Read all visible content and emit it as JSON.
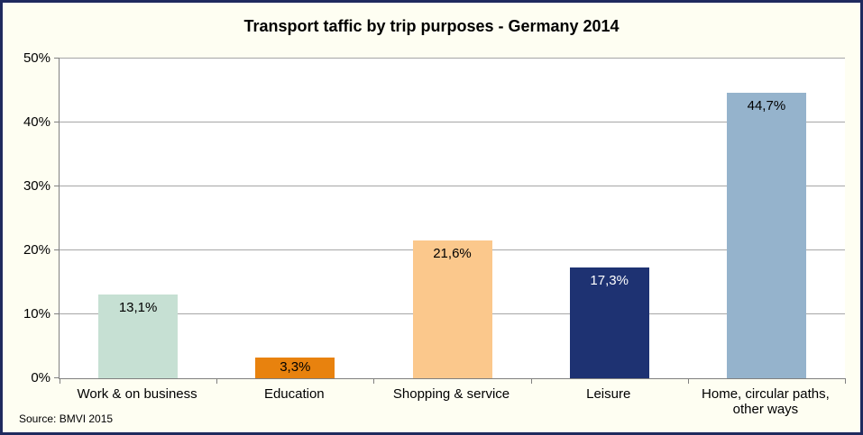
{
  "title": "Transport taffic by trip purposes - Germany 2014",
  "source": "Source: BMVI 2015",
  "colors": {
    "background": "#FEFEF2",
    "frame_border": "#1F2A5E",
    "plot_background": "#FFFFFF",
    "gridline": "#A6A6A6",
    "axis_line": "#808080"
  },
  "chart_data": {
    "type": "bar",
    "title": "Transport taffic by trip purposes - Germany 2014",
    "categories": [
      "Work & on business",
      "Education",
      "Shopping & service",
      "Leisure",
      "Home, circular paths, other ways"
    ],
    "values": [
      13.1,
      3.3,
      21.6,
      17.3,
      44.7
    ],
    "value_labels": [
      "13,1%",
      "3,3%",
      "21,6%",
      "17,3%",
      "44,7%"
    ],
    "bar_colors": [
      "#C6E0D3",
      "#E8820E",
      "#FBC88C",
      "#1E3272",
      "#95B3CC"
    ],
    "value_label_colors": [
      "#000000",
      "#000000",
      "#000000",
      "#FFFFFF",
      "#000000"
    ],
    "xlabel": "",
    "ylabel": "",
    "ylim": [
      0,
      50
    ],
    "ytick_step": 10,
    "ytick_labels": [
      "0%",
      "10%",
      "20%",
      "30%",
      "40%",
      "50%"
    ],
    "grid": true,
    "legend_position": "none",
    "source": "Source: BMVI 2015"
  }
}
